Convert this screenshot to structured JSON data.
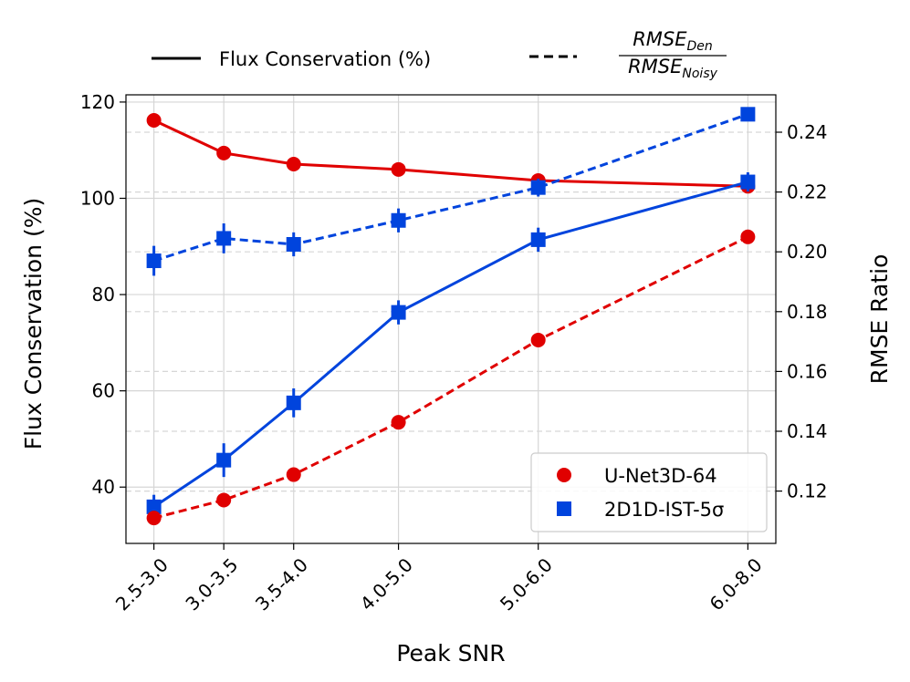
{
  "chart_data": {
    "type": "line",
    "xlabel": "Peak SNR",
    "ylabel_left": "Flux Conservation (%)",
    "ylabel_right": "RMSE Ratio",
    "categories": [
      "2.5-3.0",
      "3.0-3.5",
      "3.5-4.0",
      "4.0-5.0",
      "5.0-6.0",
      "6.0-8.0"
    ],
    "x_positions": [
      2.75,
      3.25,
      3.75,
      4.5,
      5.5,
      7.0
    ],
    "xlim": [
      2.55,
      7.2
    ],
    "ylim_left": [
      28.3,
      121.5
    ],
    "ylim_right": [
      0.1025,
      0.2525
    ],
    "yticks_left": [
      40,
      60,
      80,
      100,
      120
    ],
    "yticks_right": [
      "0.12",
      "0.14",
      "0.16",
      "0.18",
      "0.20",
      "0.22",
      "0.24"
    ],
    "grid": true,
    "legend_top": {
      "solid_label": "Flux Conservation (%)",
      "dashed_num": "RMSE",
      "dashed_num_sub": "Den",
      "dashed_den": "RMSE",
      "dashed_den_sub": "Noisy"
    },
    "legend_models": [
      "U-Net3D-64",
      "2D1D-IST-5σ"
    ],
    "series": [
      {
        "name": "U-Net3D-64",
        "metric": "flux",
        "axis": "left",
        "style": "solid",
        "color": "#e00000",
        "marker": "circle",
        "values": [
          116.2,
          109.4,
          107.1,
          106.0,
          103.7,
          102.5
        ],
        "errors": [
          1.0,
          1.0,
          0.9,
          0.8,
          0.9,
          1.2
        ]
      },
      {
        "name": "2D1D-IST-5σ",
        "metric": "flux",
        "axis": "left",
        "style": "solid",
        "color": "#0044dd",
        "marker": "square",
        "values": [
          35.9,
          45.6,
          57.5,
          76.3,
          91.4,
          103.4
        ],
        "errors": [
          2.5,
          3.5,
          3.0,
          2.5,
          2.5,
          2.0
        ]
      },
      {
        "name": "U-Net3D-64",
        "metric": "rmse_ratio",
        "axis": "right",
        "style": "dashed",
        "color": "#e00000",
        "marker": "circle",
        "values": [
          0.111,
          0.117,
          0.1255,
          0.143,
          0.1705,
          0.205
        ],
        "errors": [
          0.001,
          0.001,
          0.001,
          0.001,
          0.001,
          0.002
        ]
      },
      {
        "name": "2D1D-IST-5σ",
        "metric": "rmse_ratio",
        "axis": "right",
        "style": "dashed",
        "color": "#0044dd",
        "marker": "square",
        "values": [
          0.197,
          0.2045,
          0.2025,
          0.2105,
          0.2215,
          0.246
        ],
        "errors": [
          0.005,
          0.005,
          0.004,
          0.004,
          0.003,
          0.002
        ]
      }
    ]
  }
}
